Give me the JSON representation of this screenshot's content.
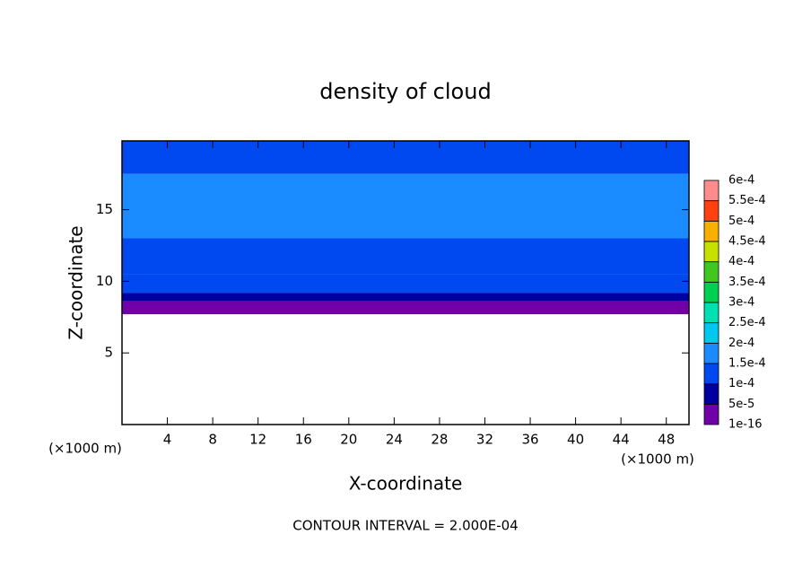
{
  "chart_data": {
    "type": "contour",
    "title": "density of cloud",
    "x_label": "X-coordinate",
    "y_label": "Z-coordinate",
    "x_unit_label": "(×1000 m)",
    "y_unit_label": "(×1000 m)",
    "note": "CONTOUR INTERVAL = 2.000E-04",
    "xlim": [
      0,
      50
    ],
    "ylim": [
      0,
      19.8
    ],
    "xticks": [
      4,
      8,
      12,
      16,
      20,
      24,
      28,
      32,
      36,
      40,
      44,
      48
    ],
    "yticks": [
      5,
      10,
      15
    ],
    "z_edges": [
      7.7,
      8.6,
      9.2,
      10.5,
      13,
      17.5,
      19.8
    ],
    "values": [
      1e-05,
      7e-05,
      0.00012,
      0.00013,
      0.00016,
      0.00014
    ],
    "colorbar": {
      "levels": [
        {
          "value": 1e-16,
          "label": "1e-16"
        },
        {
          "value": 5e-05,
          "label": "5e-5"
        },
        {
          "value": 0.0001,
          "label": "1e-4"
        },
        {
          "value": 0.00015,
          "label": "1.5e-4"
        },
        {
          "value": 0.0002,
          "label": "2e-4"
        },
        {
          "value": 0.00025,
          "label": "2.5e-4"
        },
        {
          "value": 0.0003,
          "label": "3e-4"
        },
        {
          "value": 0.00035,
          "label": "3.5e-4"
        },
        {
          "value": 0.0004,
          "label": "4e-4"
        },
        {
          "value": 0.00045,
          "label": "4.5e-4"
        },
        {
          "value": 0.0005,
          "label": "5e-4"
        },
        {
          "value": 0.00055,
          "label": "5.5e-4"
        },
        {
          "value": 0.0006,
          "label": "6e-4"
        }
      ],
      "colors": [
        "#7000a8",
        "#0000a0",
        "#0048f0",
        "#1a8cff",
        "#00c8f0",
        "#00e0b0",
        "#00d050",
        "#40c820",
        "#c8e000",
        "#f8b000",
        "#ff4010",
        "#ff8c8c"
      ]
    }
  }
}
